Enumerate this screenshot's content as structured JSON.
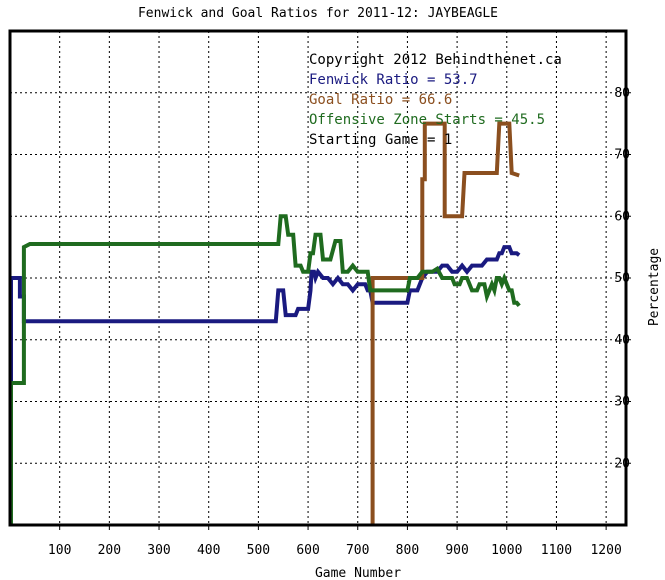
{
  "chart_data": {
    "type": "line",
    "title": "Fenwick and Goal Ratios for 2011-12: JAYBEAGLE",
    "xlabel": "Game Number",
    "ylabel": "Percentage",
    "xlim": [
      0,
      1240
    ],
    "ylim": [
      10,
      90
    ],
    "xticks": [
      100,
      200,
      300,
      400,
      500,
      600,
      700,
      800,
      900,
      1000,
      1100,
      1200
    ],
    "yticks": [
      20,
      30,
      40,
      50,
      60,
      70,
      80
    ],
    "grid": true,
    "annotations": [
      {
        "text": "Copyright 2012 Behindthenet.ca",
        "color": "#000000"
      },
      {
        "text": "Fenwick Ratio = 53.7",
        "color": "#1a1a80"
      },
      {
        "text": "Goal Ratio = 66.6",
        "color": "#8b4f1f"
      },
      {
        "text": "Offensive Zone Starts = 45.5",
        "color": "#1f6b1f"
      },
      {
        "text": "Starting Game = 1",
        "color": "#000000"
      }
    ],
    "series": [
      {
        "name": "Fenwick Ratio",
        "color": "#1a1a80",
        "points": [
          [
            2,
            10
          ],
          [
            2,
            50
          ],
          [
            10,
            50
          ],
          [
            10,
            50
          ],
          [
            20,
            50
          ],
          [
            20,
            47
          ],
          [
            28,
            47
          ],
          [
            28,
            43
          ],
          [
            50,
            43
          ],
          [
            100,
            43
          ],
          [
            200,
            43
          ],
          [
            300,
            43
          ],
          [
            400,
            43
          ],
          [
            530,
            43
          ],
          [
            535,
            43
          ],
          [
            540,
            48
          ],
          [
            550,
            48
          ],
          [
            555,
            44
          ],
          [
            560,
            44
          ],
          [
            575,
            44
          ],
          [
            580,
            45
          ],
          [
            590,
            45
          ],
          [
            600,
            45
          ],
          [
            605,
            48
          ],
          [
            607,
            51
          ],
          [
            612,
            51
          ],
          [
            615,
            50
          ],
          [
            620,
            51
          ],
          [
            630,
            50
          ],
          [
            640,
            50
          ],
          [
            650,
            49
          ],
          [
            660,
            50
          ],
          [
            670,
            49
          ],
          [
            680,
            49
          ],
          [
            690,
            48
          ],
          [
            700,
            49
          ],
          [
            715,
            49
          ],
          [
            720,
            48
          ],
          [
            725,
            48
          ],
          [
            730,
            46
          ],
          [
            780,
            46
          ],
          [
            790,
            46
          ],
          [
            800,
            46
          ],
          [
            805,
            48
          ],
          [
            810,
            48
          ],
          [
            820,
            48
          ],
          [
            830,
            50
          ],
          [
            840,
            51
          ],
          [
            850,
            51
          ],
          [
            855,
            51
          ],
          [
            860,
            51
          ],
          [
            870,
            52
          ],
          [
            880,
            52
          ],
          [
            890,
            51
          ],
          [
            900,
            51
          ],
          [
            910,
            52
          ],
          [
            920,
            51
          ],
          [
            930,
            52
          ],
          [
            950,
            52
          ],
          [
            960,
            53
          ],
          [
            970,
            53
          ],
          [
            980,
            53
          ],
          [
            985,
            54
          ],
          [
            990,
            54
          ],
          [
            995,
            55
          ],
          [
            1005,
            55
          ],
          [
            1010,
            54
          ],
          [
            1020,
            54
          ],
          [
            1025,
            53.7
          ]
        ]
      },
      {
        "name": "Goal Ratio",
        "color": "#8b4f1f",
        "points": [
          [
            730,
            10
          ],
          [
            730,
            50
          ],
          [
            830,
            50
          ],
          [
            830,
            66
          ],
          [
            835,
            66
          ],
          [
            835,
            75
          ],
          [
            875,
            75
          ],
          [
            875,
            60
          ],
          [
            885,
            60
          ],
          [
            885,
            60
          ],
          [
            910,
            60
          ],
          [
            915,
            67
          ],
          [
            925,
            67
          ],
          [
            945,
            67
          ],
          [
            980,
            67
          ],
          [
            985,
            75
          ],
          [
            1005,
            75
          ],
          [
            1010,
            67
          ],
          [
            1025,
            66.6
          ]
        ]
      },
      {
        "name": "Offensive Zone Starts",
        "color": "#1f6b1f",
        "points": [
          [
            2,
            10
          ],
          [
            2,
            33
          ],
          [
            28,
            33
          ],
          [
            28,
            55
          ],
          [
            40,
            55.5
          ],
          [
            100,
            55.5
          ],
          [
            200,
            55.5
          ],
          [
            300,
            55.5
          ],
          [
            400,
            55.5
          ],
          [
            540,
            55.5
          ],
          [
            545,
            60
          ],
          [
            555,
            60
          ],
          [
            560,
            57
          ],
          [
            570,
            57
          ],
          [
            575,
            52
          ],
          [
            585,
            52
          ],
          [
            590,
            51
          ],
          [
            600,
            51
          ],
          [
            605,
            54
          ],
          [
            610,
            54
          ],
          [
            615,
            57
          ],
          [
            625,
            57
          ],
          [
            630,
            53
          ],
          [
            640,
            53
          ],
          [
            645,
            53
          ],
          [
            655,
            56
          ],
          [
            665,
            56
          ],
          [
            670,
            51
          ],
          [
            680,
            51
          ],
          [
            690,
            52
          ],
          [
            700,
            51
          ],
          [
            720,
            51
          ],
          [
            725,
            48
          ],
          [
            800,
            48
          ],
          [
            805,
            50
          ],
          [
            815,
            50
          ],
          [
            820,
            50
          ],
          [
            830,
            51
          ],
          [
            840,
            51
          ],
          [
            850,
            51
          ],
          [
            860,
            51.5
          ],
          [
            870,
            50
          ],
          [
            880,
            50
          ],
          [
            890,
            50
          ],
          [
            895,
            49
          ],
          [
            905,
            49
          ],
          [
            910,
            50
          ],
          [
            920,
            50
          ],
          [
            930,
            48
          ],
          [
            940,
            48
          ],
          [
            945,
            49
          ],
          [
            955,
            49
          ],
          [
            960,
            47
          ],
          [
            970,
            49
          ],
          [
            975,
            48
          ],
          [
            980,
            50
          ],
          [
            985,
            50
          ],
          [
            990,
            49
          ],
          [
            995,
            50
          ],
          [
            1005,
            48
          ],
          [
            1010,
            48
          ],
          [
            1015,
            46
          ],
          [
            1020,
            46
          ],
          [
            1025,
            45.5
          ]
        ]
      }
    ]
  }
}
